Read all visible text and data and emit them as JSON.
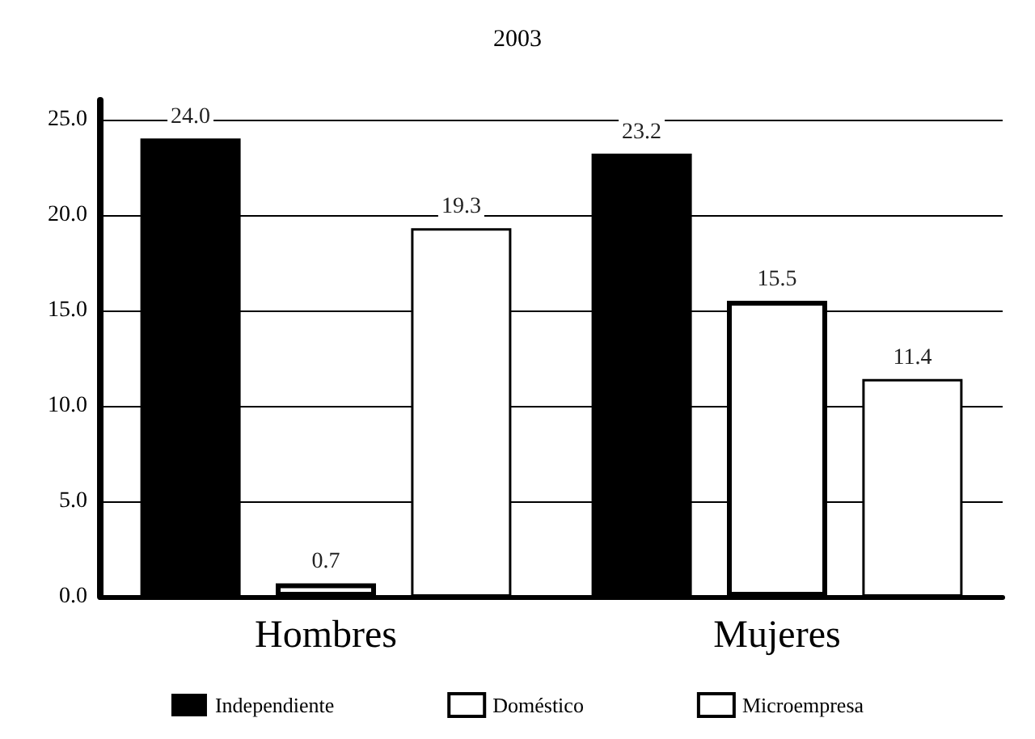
{
  "chart_data": {
    "type": "bar",
    "title": "2003",
    "categories": [
      "Hombres",
      "Mujeres"
    ],
    "series": [
      {
        "name": "Independiente",
        "color": "#000000",
        "values": [
          24.0,
          23.2
        ],
        "value_labels": [
          "24.0",
          "23.2"
        ]
      },
      {
        "name": "Doméstico",
        "color": "#ffffff",
        "values": [
          0.7,
          15.5
        ],
        "value_labels": [
          "0.7",
          "15.5"
        ]
      },
      {
        "name": "Microempresa",
        "color": "#ffffff",
        "values": [
          19.3,
          11.4
        ],
        "value_labels": [
          "19.3",
          "11.4"
        ]
      }
    ],
    "ylim": [
      0,
      26
    ],
    "yticks": [
      {
        "value": 0,
        "label": "0.0"
      },
      {
        "value": 5,
        "label": "5.0"
      },
      {
        "value": 10,
        "label": "10.0"
      },
      {
        "value": 15,
        "label": "15.0"
      },
      {
        "value": 20,
        "label": "20.0"
      },
      {
        "value": 25,
        "label": "25.0"
      }
    ],
    "grid": "y",
    "legend": "bottom"
  }
}
